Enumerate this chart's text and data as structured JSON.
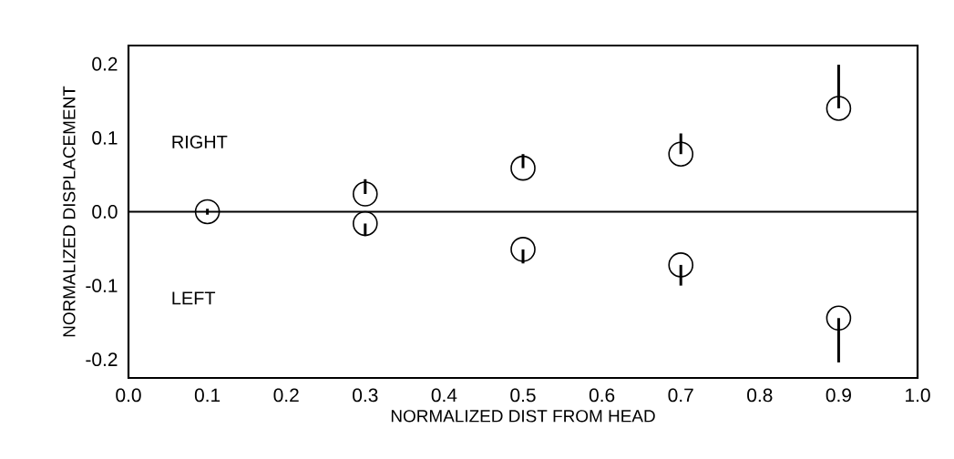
{
  "chart_data": {
    "type": "scatter",
    "xlabel": "NORMALIZED DIST FROM HEAD",
    "ylabel": "NORMALIZED DISPLACEMENT",
    "x": [
      0.1,
      0.3,
      0.5,
      0.7,
      0.9
    ],
    "series": [
      {
        "color": "#000000",
        "values": [
          0.0,
          0.024,
          0.059,
          0.078,
          0.14
        ],
        "errors": [
          0.004,
          [
            0.024,
            0.044
          ],
          [
            0.059,
            0.078
          ],
          [
            0.078,
            0.106
          ],
          [
            0.14,
            0.199
          ]
        ]
      },
      {
        "color": "#000000",
        "values": [
          null,
          -0.016,
          -0.051,
          -0.072,
          -0.144
        ],
        "errors": [
          null,
          [
            -0.033,
            -0.016
          ],
          [
            -0.07,
            -0.051
          ],
          [
            -0.1,
            -0.072
          ],
          [
            -0.204,
            -0.144
          ]
        ]
      }
    ],
    "marker": "circle",
    "xlim": [
      0.0,
      1.0
    ],
    "ylim": [
      -0.225,
      0.225
    ],
    "xticks": [
      {
        "value": 0.0,
        "label": "0.0"
      },
      {
        "value": 0.1,
        "label": "0.1"
      },
      {
        "value": 0.2,
        "label": "0.2"
      },
      {
        "value": 0.3,
        "label": "0.3"
      },
      {
        "value": 0.4,
        "label": "0.4"
      },
      {
        "value": 0.5,
        "label": "0.5"
      },
      {
        "value": 0.6,
        "label": "0.6"
      },
      {
        "value": 0.7,
        "label": "0.7"
      },
      {
        "value": 0.8,
        "label": "0.8"
      },
      {
        "value": 0.9,
        "label": "0.9"
      },
      {
        "value": 1.0,
        "label": "1.0"
      }
    ],
    "yticks": [
      {
        "value": -0.2,
        "label": "-0.2"
      },
      {
        "value": -0.1,
        "label": "-0.1"
      },
      {
        "value": 0.0,
        "label": "0.0"
      },
      {
        "value": 0.1,
        "label": "0.1"
      },
      {
        "value": 0.2,
        "label": "0.2"
      }
    ],
    "ref_lines": [
      {
        "axis": "y",
        "value": 0.0,
        "color": "#000000"
      }
    ],
    "annotations": [
      "RIGHT",
      "LEFT"
    ]
  }
}
